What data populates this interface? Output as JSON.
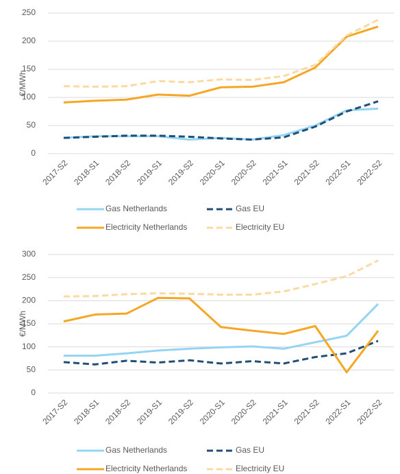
{
  "chart_data": [
    {
      "type": "line",
      "y_label": "€/MWh",
      "categories": [
        "2017-S2",
        "2018-S1",
        "2018-S2",
        "2019-S1",
        "2019-S2",
        "2020-S1",
        "2020-S2",
        "2021-S1",
        "2021-S2",
        "2022-S1",
        "2022-S2"
      ],
      "ylim": [
        0,
        250
      ],
      "yticks": [
        0,
        50,
        100,
        150,
        200,
        250
      ],
      "grid": true,
      "series": [
        {
          "name": "Gas Netherlands",
          "color": "#93d5f2",
          "dashed": false,
          "values": [
            28,
            31,
            31,
            31,
            25,
            28,
            25,
            33,
            50,
            77,
            80
          ]
        },
        {
          "name": "Gas EU",
          "color": "#1f4e79",
          "dashed": true,
          "values": [
            28,
            30,
            32,
            32,
            30,
            27,
            25,
            29,
            48,
            75,
            93
          ]
        },
        {
          "name": "Electricity Netherlands",
          "color": "#f5a623",
          "dashed": false,
          "values": [
            91,
            94,
            96,
            105,
            103,
            118,
            119,
            127,
            153,
            208,
            226
          ]
        },
        {
          "name": "Electricity EU",
          "color": "#fbd9a0",
          "dashed": true,
          "values": [
            120,
            119,
            120,
            129,
            127,
            132,
            131,
            138,
            158,
            210,
            238
          ]
        }
      ]
    },
    {
      "type": "line",
      "y_label": "€/MWh",
      "categories": [
        "2017-S2",
        "2018-S1",
        "2018-S2",
        "2019-S1",
        "2019-S2",
        "2020-S1",
        "2020-S2",
        "2021-S1",
        "2021-S2",
        "2022-S1",
        "2022-S2"
      ],
      "ylim": [
        0,
        300
      ],
      "yticks": [
        0,
        50,
        100,
        150,
        200,
        250,
        300
      ],
      "grid": true,
      "series": [
        {
          "name": "Gas Netherlands",
          "color": "#93d5f2",
          "dashed": false,
          "values": [
            81,
            81,
            86,
            92,
            96,
            99,
            101,
            96,
            110,
            124,
            193
          ]
        },
        {
          "name": "Gas EU",
          "color": "#1f4e79",
          "dashed": true,
          "values": [
            67,
            62,
            70,
            66,
            71,
            64,
            69,
            64,
            78,
            86,
            113
          ]
        },
        {
          "name": "Electricity Netherlands",
          "color": "#f5a623",
          "dashed": false,
          "values": [
            155,
            170,
            172,
            206,
            205,
            143,
            135,
            128,
            145,
            45,
            135
          ]
        },
        {
          "name": "Electricity EU",
          "color": "#fbd9a0",
          "dashed": true,
          "values": [
            209,
            210,
            214,
            216,
            215,
            213,
            213,
            220,
            236,
            253,
            287
          ]
        }
      ]
    }
  ]
}
